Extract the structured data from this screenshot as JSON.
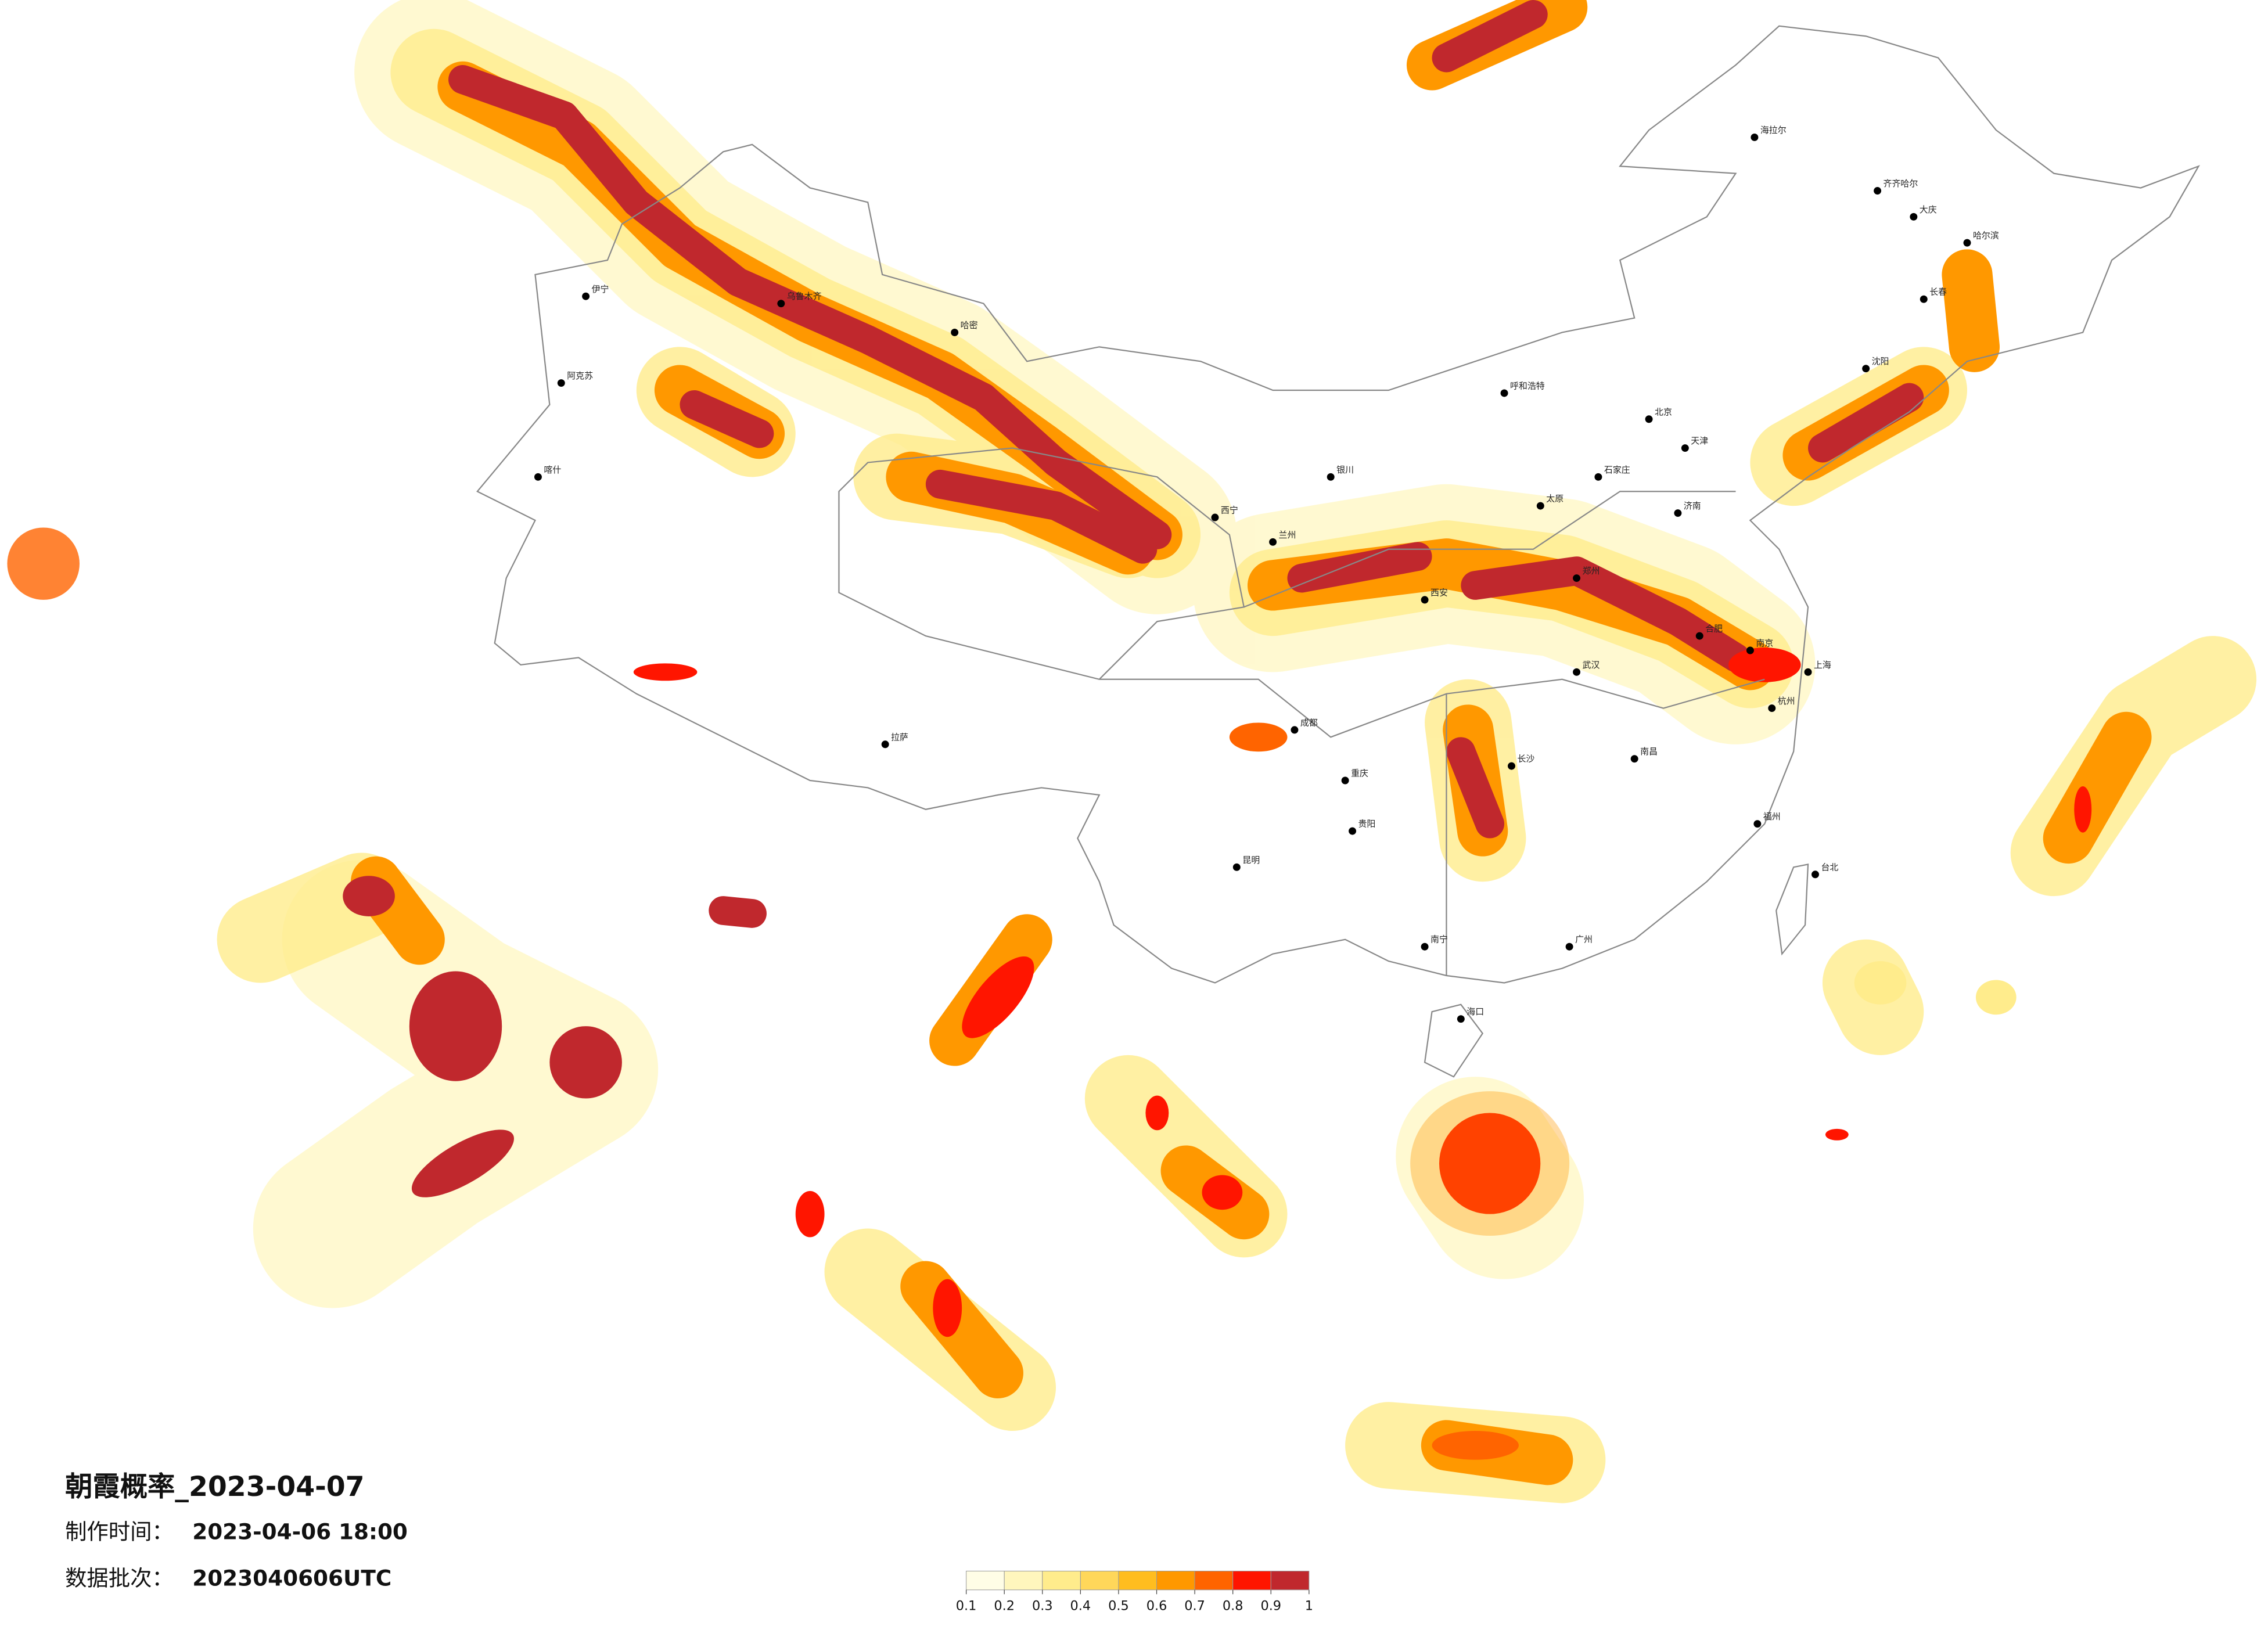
{
  "title": "朝霞概率_2023-04-07",
  "production_time": {
    "label": "制作时间：",
    "value": "2023-04-06 18:00"
  },
  "data_batch": {
    "label": "数据批次：",
    "value": "2023040606UTC"
  },
  "colorbar": {
    "ticks": [
      0.1,
      0.2,
      0.3,
      0.4,
      0.5,
      0.6,
      0.7,
      0.8,
      0.9,
      1
    ],
    "colors": [
      "#fffde6",
      "#fff6bd",
      "#ffec8c",
      "#ffd75a",
      "#ffbd1f",
      "#ff9800",
      "#ff6400",
      "#ff1500",
      "#c0282d"
    ]
  },
  "cities": [
    "哈尔滨",
    "长春",
    "沈阳",
    "北京",
    "天津",
    "石家庄",
    "太原",
    "呼和浩特",
    "济南",
    "郑州",
    "西安",
    "兰州",
    "西宁",
    "银川",
    "乌鲁木齐",
    "拉萨",
    "成都",
    "重庆",
    "贵阳",
    "昆明",
    "南宁",
    "广州",
    "长沙",
    "武汉",
    "南昌",
    "合肥",
    "南京",
    "上海",
    "杭州",
    "福州",
    "海口",
    "台北",
    "喀什",
    "阿克苏",
    "伊宁",
    "哈密",
    "海拉尔",
    "齐齐哈尔",
    "大庆"
  ]
}
